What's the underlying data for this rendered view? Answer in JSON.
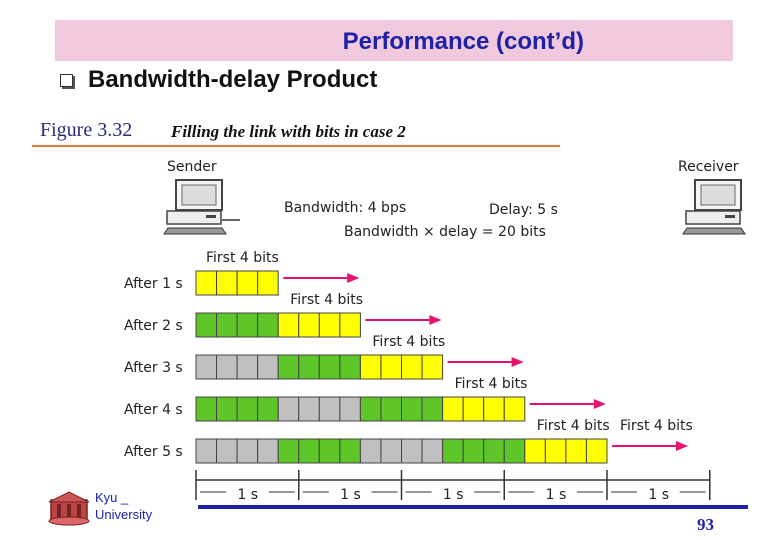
{
  "header": {
    "title": "Performance (cont’d)"
  },
  "subtitle": "Bandwidth-delay Product",
  "figure": {
    "label": "Figure 3.32",
    "caption": "Filling the link with bits in case 2"
  },
  "diagram": {
    "sender_label": "Sender",
    "receiver_label": "Receiver",
    "bandwidth_text": "Bandwidth: 4 bps",
    "delay_text": "Delay: 5 s",
    "product_text": "Bandwidth × delay = 20 bits",
    "rows": [
      "After 1 s",
      "After 2 s",
      "After 3 s",
      "After 4 s",
      "After 5 s"
    ],
    "first_bits_label": "First 4 bits",
    "axis_labels": [
      "1 s",
      "1 s",
      "1 s",
      "1 s",
      "1 s"
    ],
    "colors": {
      "yellow": "#ffff00",
      "green": "#5ec628",
      "gray": "#c0c0c0",
      "arrow": "#e5136e"
    }
  },
  "footer": {
    "logo_line1": "Kyu _",
    "logo_line2": "University",
    "page_number": "93"
  }
}
